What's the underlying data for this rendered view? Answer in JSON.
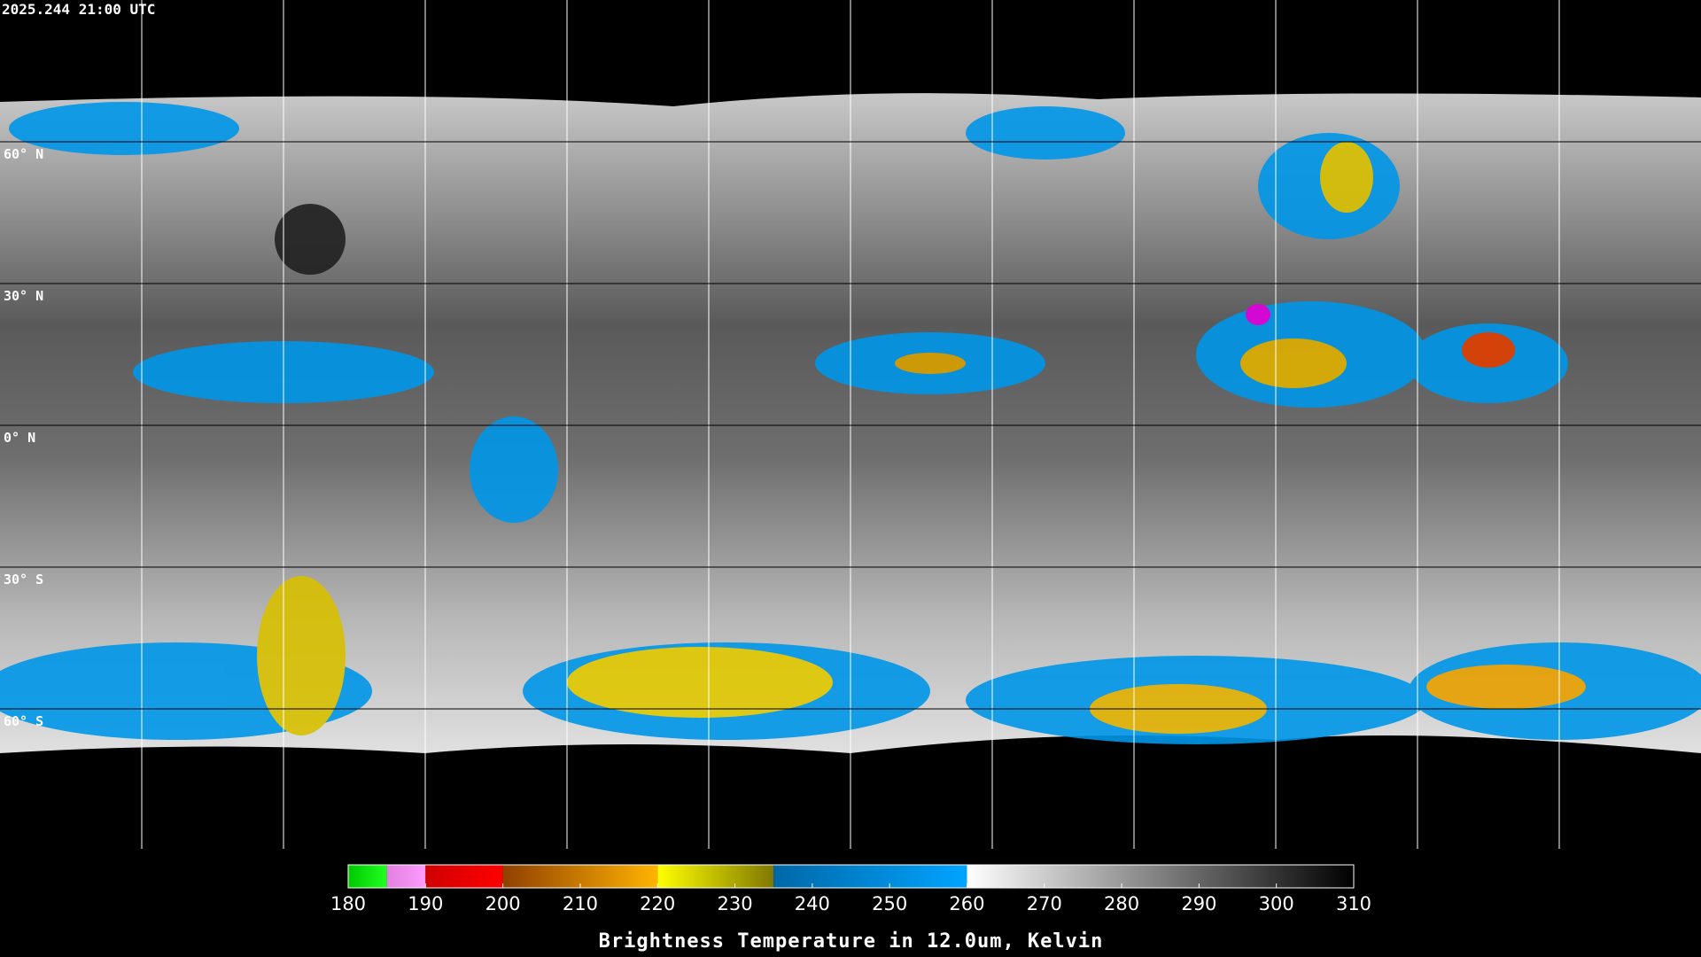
{
  "timestamp": "2025.244 21:00 UTC",
  "grid": {
    "lat_lines": [
      {
        "value": 60,
        "label": "60° N"
      },
      {
        "value": 30,
        "label": "30° N"
      },
      {
        "value": 0,
        "label": "0° N"
      },
      {
        "value": -30,
        "label": "30° S"
      },
      {
        "value": -60,
        "label": "60° S"
      }
    ],
    "lon_lines": [
      -150,
      -120,
      -90,
      -60,
      -30,
      0,
      30,
      60,
      90,
      120,
      150
    ]
  },
  "colorbar": {
    "title": "Brightness Temperature in 12.0um, Kelvin",
    "range": [
      180,
      310
    ],
    "ticks": [
      180,
      190,
      200,
      210,
      220,
      230,
      240,
      250,
      260,
      270,
      280,
      290,
      300,
      310
    ],
    "segments": [
      {
        "from": 180,
        "to": 185,
        "colors": [
          "#00c800",
          "#20ff20"
        ]
      },
      {
        "from": 185,
        "to": 190,
        "colors": [
          "#e080e0",
          "#ff9cff"
        ]
      },
      {
        "from": 190,
        "to": 200,
        "colors": [
          "#d00000",
          "#ff0000"
        ]
      },
      {
        "from": 200,
        "to": 220,
        "colors": [
          "#904000",
          "#ffb400"
        ]
      },
      {
        "from": 220,
        "to": 235,
        "colors": [
          "#ffff00",
          "#807800"
        ]
      },
      {
        "from": 235,
        "to": 260,
        "colors": [
          "#0068a8",
          "#00a4ff"
        ]
      },
      {
        "from": 260,
        "to": 310,
        "colors": [
          "#ffffff",
          "#000000"
        ]
      }
    ]
  }
}
